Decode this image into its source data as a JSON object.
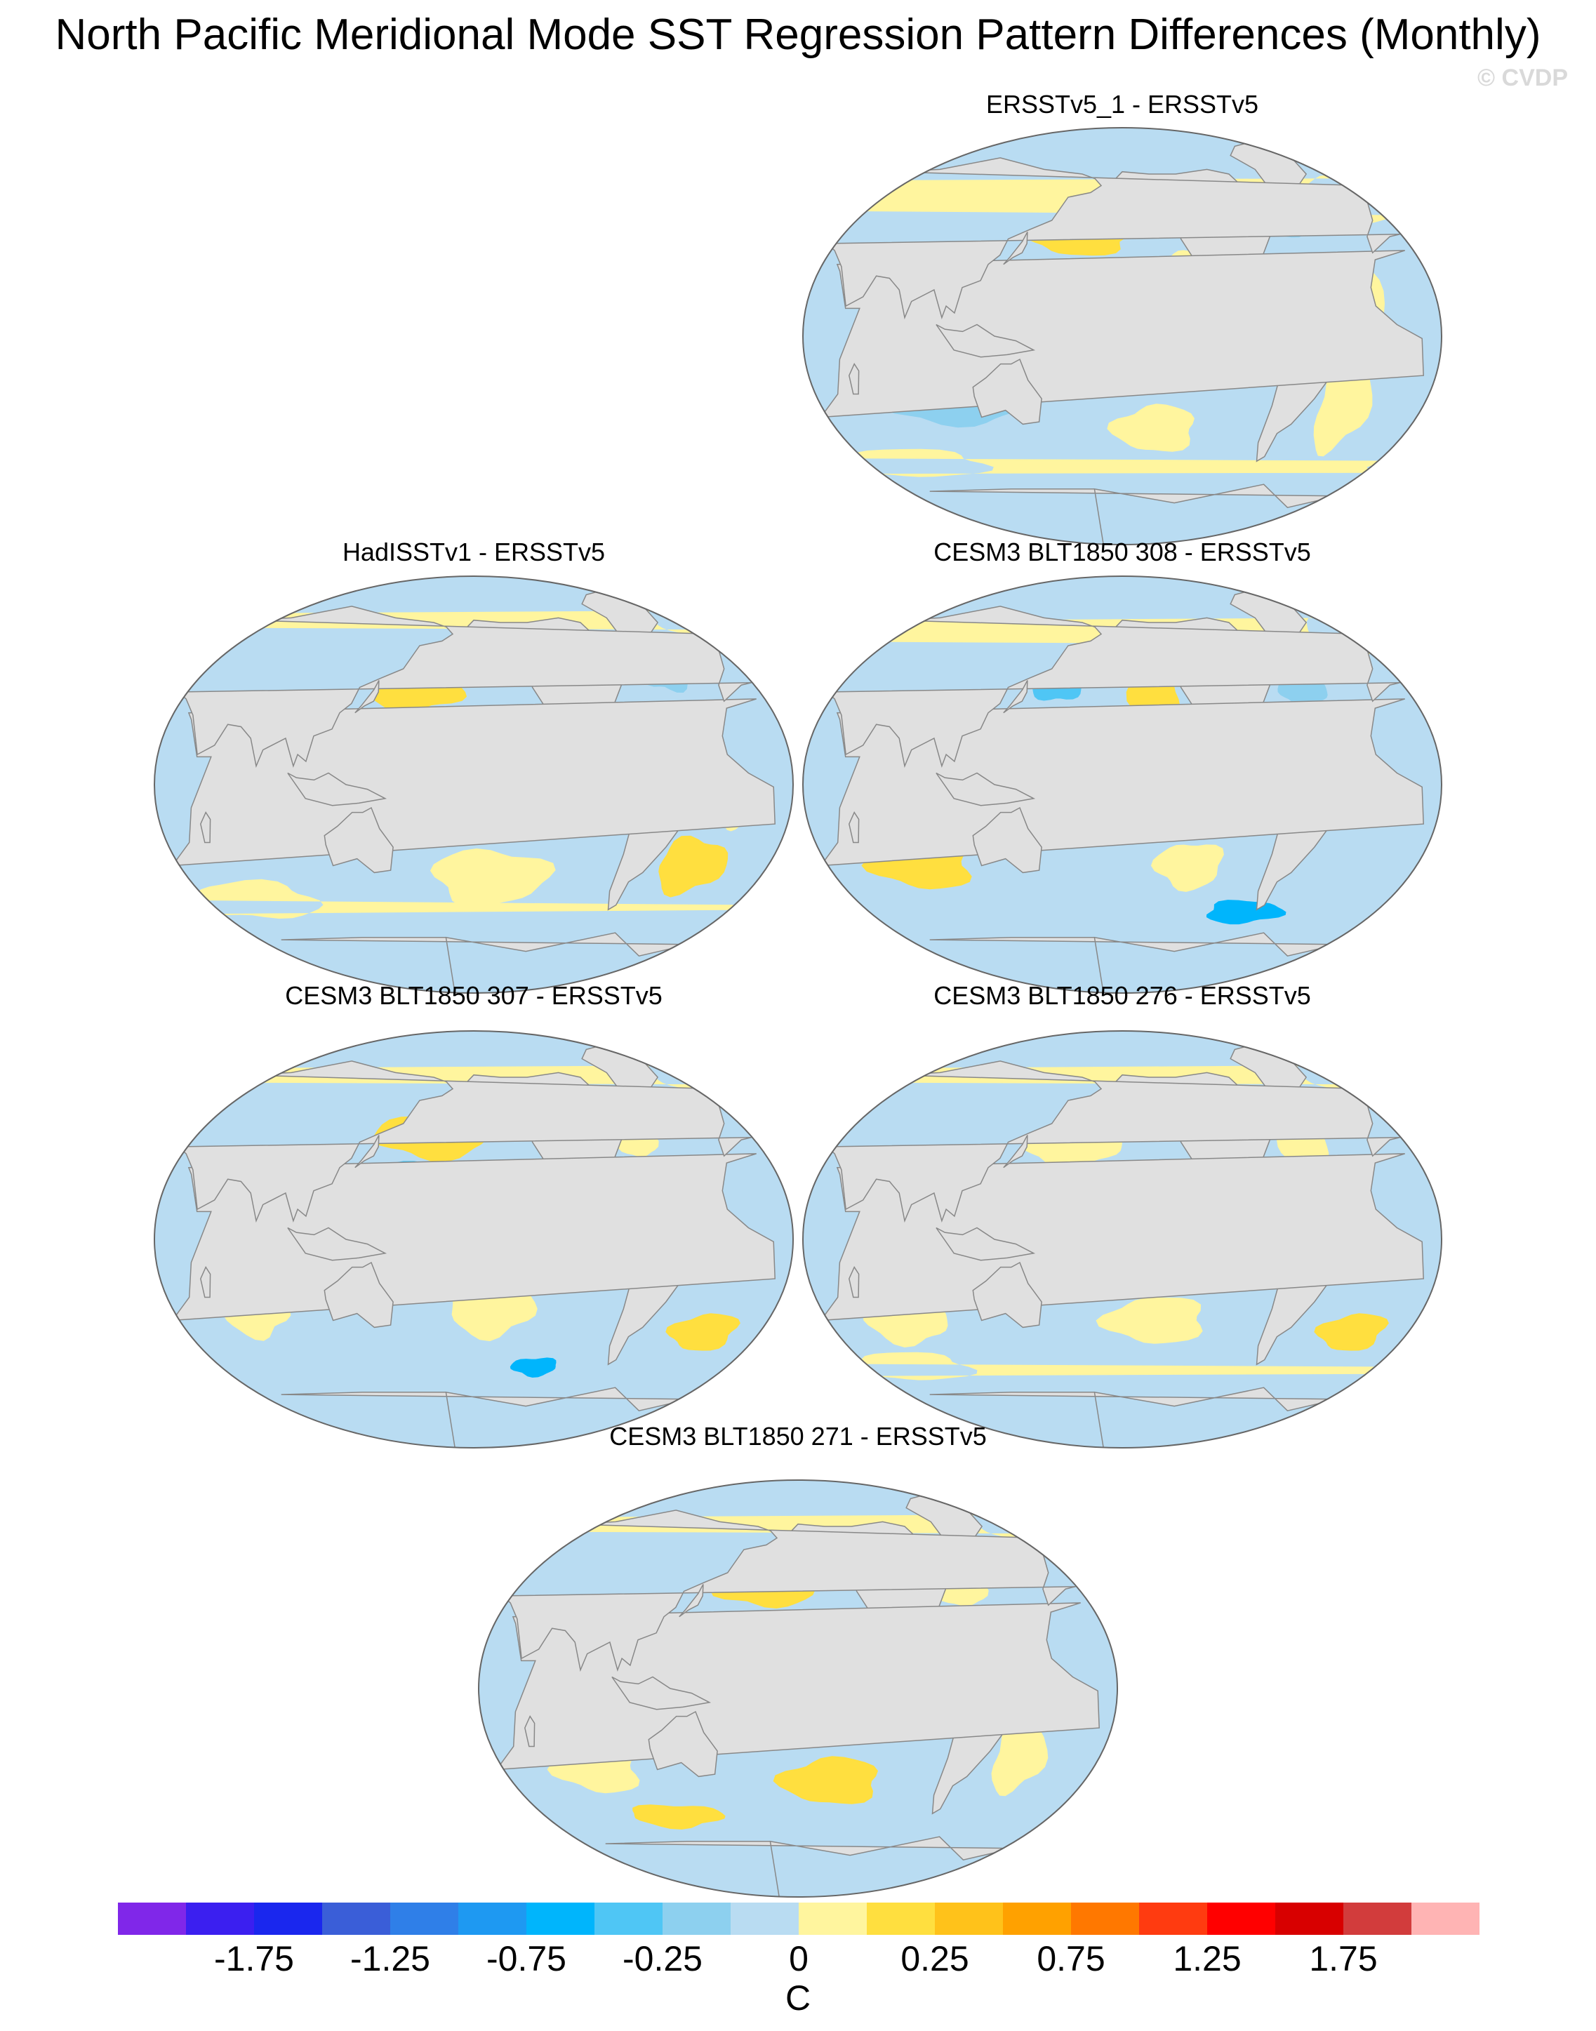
{
  "figure": {
    "title": "North Pacific Meridional Mode SST Regression Pattern Differences (Monthly)",
    "watermark": "© CVDP",
    "units": "C",
    "colors": {
      "ocean_base": "#b9dcf2",
      "land": "#e0e0e0",
      "coast": "#888888",
      "outline": "#666666"
    }
  },
  "panels": [
    {
      "title": "ERSSTv5_1 - ERSSTv5",
      "slot": "top-right",
      "blobs": [
        {
          "lon": 175,
          "lat": 42,
          "rx": 30,
          "ry": 7,
          "c": 11
        },
        {
          "lon": -150,
          "lat": 8,
          "rx": 35,
          "ry": 4,
          "c": 12
        },
        {
          "lon": -130,
          "lat": 5,
          "rx": 50,
          "ry": 7,
          "c": 10
        },
        {
          "lon": -120,
          "lat": 28,
          "rx": 15,
          "ry": 10,
          "c": 10
        },
        {
          "lon": 100,
          "lat": -30,
          "rx": 40,
          "ry": 8,
          "c": 8
        },
        {
          "lon": 80,
          "lat": -10,
          "rx": 12,
          "ry": 12,
          "c": 8
        },
        {
          "lon": -140,
          "lat": -40,
          "rx": 25,
          "ry": 10,
          "c": 10
        },
        {
          "lon": -30,
          "lat": -30,
          "rx": 15,
          "ry": 20,
          "c": 10
        },
        {
          "lon": 60,
          "lat": -55,
          "rx": 50,
          "ry": 6,
          "c": 10
        },
        {
          "lon": -20,
          "lat": 10,
          "rx": 10,
          "ry": 20,
          "c": 10
        },
        {
          "lon": 0,
          "lat": 60,
          "rx": 30,
          "ry": 10,
          "c": 10
        },
        {
          "lon": -60,
          "lat": 50,
          "rx": 20,
          "ry": 8,
          "c": 8
        },
        {
          "lon": -170,
          "lat": 60,
          "rx": 20,
          "ry": 6,
          "c": 10
        }
      ]
    },
    {
      "title": "HadISSTv1 - ERSSTv5",
      "slot": "mid1-left",
      "blobs": [
        {
          "lon": 165,
          "lat": 40,
          "rx": 28,
          "ry": 8,
          "c": 11
        },
        {
          "lon": 175,
          "lat": 22,
          "rx": 30,
          "ry": 5,
          "c": 8
        },
        {
          "lon": -140,
          "lat": 8,
          "rx": 45,
          "ry": 6,
          "c": 11
        },
        {
          "lon": -150,
          "lat": 8,
          "rx": 25,
          "ry": 3,
          "c": 12
        },
        {
          "lon": 100,
          "lat": -15,
          "rx": 15,
          "ry": 8,
          "c": 7
        },
        {
          "lon": -150,
          "lat": -40,
          "rx": 35,
          "ry": 12,
          "c": 10
        },
        {
          "lon": -30,
          "lat": -35,
          "rx": 20,
          "ry": 12,
          "c": 11
        },
        {
          "lon": -10,
          "lat": -10,
          "rx": 10,
          "ry": 10,
          "c": 10
        },
        {
          "lon": 60,
          "lat": -50,
          "rx": 40,
          "ry": 8,
          "c": 10
        },
        {
          "lon": 0,
          "lat": 70,
          "rx": 25,
          "ry": 6,
          "c": 10
        },
        {
          "lon": -40,
          "lat": 50,
          "rx": 15,
          "ry": 10,
          "c": 8
        }
      ]
    },
    {
      "title": "CESM3 BLT1850 308 - ERSSTv5",
      "slot": "mid1-right",
      "blobs": [
        {
          "lon": 160,
          "lat": 42,
          "rx": 15,
          "ry": 6,
          "c": 7
        },
        {
          "lon": -140,
          "lat": 40,
          "rx": 15,
          "ry": 15,
          "c": 11
        },
        {
          "lon": 180,
          "lat": 10,
          "rx": 70,
          "ry": 5,
          "c": 10
        },
        {
          "lon": -140,
          "lat": 5,
          "rx": 40,
          "ry": 4,
          "c": 11
        },
        {
          "lon": 90,
          "lat": -10,
          "rx": 10,
          "ry": 8,
          "c": 6
        },
        {
          "lon": 80,
          "lat": -35,
          "rx": 30,
          "ry": 10,
          "c": 11
        },
        {
          "lon": -140,
          "lat": -15,
          "rx": 15,
          "ry": 6,
          "c": 7
        },
        {
          "lon": -120,
          "lat": -35,
          "rx": 20,
          "ry": 10,
          "c": 10
        },
        {
          "lon": -20,
          "lat": -5,
          "rx": 10,
          "ry": 12,
          "c": 11
        },
        {
          "lon": -80,
          "lat": -55,
          "rx": 25,
          "ry": 5,
          "c": 6
        },
        {
          "lon": 0,
          "lat": 65,
          "rx": 25,
          "ry": 8,
          "c": 10
        },
        {
          "lon": -50,
          "lat": 40,
          "rx": 15,
          "ry": 6,
          "c": 8
        }
      ]
    },
    {
      "title": "CESM3 BLT1850 307 - ERSSTv5",
      "slot": "mid2-left",
      "blobs": [
        {
          "lon": 175,
          "lat": 45,
          "rx": 35,
          "ry": 10,
          "c": 11
        },
        {
          "lon": 170,
          "lat": 28,
          "rx": 25,
          "ry": 6,
          "c": 7
        },
        {
          "lon": -140,
          "lat": 8,
          "rx": 45,
          "ry": 5,
          "c": 12
        },
        {
          "lon": 100,
          "lat": 5,
          "rx": 25,
          "ry": 8,
          "c": 7
        },
        {
          "lon": 70,
          "lat": -30,
          "rx": 20,
          "ry": 12,
          "c": 10
        },
        {
          "lon": -150,
          "lat": -30,
          "rx": 25,
          "ry": 12,
          "c": 10
        },
        {
          "lon": -20,
          "lat": -40,
          "rx": 20,
          "ry": 8,
          "c": 11
        },
        {
          "lon": -120,
          "lat": -55,
          "rx": 15,
          "ry": 4,
          "c": 6
        },
        {
          "lon": -60,
          "lat": 45,
          "rx": 12,
          "ry": 10,
          "c": 10
        },
        {
          "lon": 0,
          "lat": 70,
          "rx": 25,
          "ry": 6,
          "c": 10
        },
        {
          "lon": -150,
          "lat": 55,
          "rx": 10,
          "ry": 5,
          "c": 12
        }
      ]
    },
    {
      "title": "CESM3 BLT1850 276 - ERSSTv5",
      "slot": "mid2-right",
      "blobs": [
        {
          "lon": 170,
          "lat": 40,
          "rx": 30,
          "ry": 8,
          "c": 10
        },
        {
          "lon": -150,
          "lat": 8,
          "rx": 50,
          "ry": 7,
          "c": 10
        },
        {
          "lon": 160,
          "lat": 12,
          "rx": 20,
          "ry": 4,
          "c": 11
        },
        {
          "lon": 90,
          "lat": -10,
          "rx": 15,
          "ry": 8,
          "c": 7
        },
        {
          "lon": 70,
          "lat": -35,
          "rx": 25,
          "ry": 10,
          "c": 10
        },
        {
          "lon": -140,
          "lat": -35,
          "rx": 30,
          "ry": 10,
          "c": 10
        },
        {
          "lon": -20,
          "lat": -40,
          "rx": 20,
          "ry": 8,
          "c": 11
        },
        {
          "lon": -110,
          "lat": -10,
          "rx": 12,
          "ry": 8,
          "c": 7
        },
        {
          "lon": -50,
          "lat": 40,
          "rx": 15,
          "ry": 12,
          "c": 10
        },
        {
          "lon": 0,
          "lat": 70,
          "rx": 25,
          "ry": 6,
          "c": 10
        },
        {
          "lon": 60,
          "lat": -55,
          "rx": 40,
          "ry": 6,
          "c": 10
        }
      ]
    },
    {
      "title": "CESM3 BLT1850 271 - ERSSTv5",
      "slot": "bottom-center",
      "blobs": [
        {
          "lon": 180,
          "lat": 45,
          "rx": 30,
          "ry": 10,
          "c": 11
        },
        {
          "lon": -150,
          "lat": 25,
          "rx": 20,
          "ry": 8,
          "c": 12
        },
        {
          "lon": 160,
          "lat": 22,
          "rx": 25,
          "ry": 6,
          "c": 7
        },
        {
          "lon": 180,
          "lat": 5,
          "rx": 50,
          "ry": 5,
          "c": 10
        },
        {
          "lon": 120,
          "lat": -10,
          "rx": 20,
          "ry": 8,
          "c": 7
        },
        {
          "lon": 80,
          "lat": -35,
          "rx": 25,
          "ry": 10,
          "c": 10
        },
        {
          "lon": -140,
          "lat": -40,
          "rx": 30,
          "ry": 10,
          "c": 11
        },
        {
          "lon": -30,
          "lat": -30,
          "rx": 15,
          "ry": 15,
          "c": 10
        },
        {
          "lon": -60,
          "lat": 45,
          "rx": 15,
          "ry": 10,
          "c": 10
        },
        {
          "lon": 0,
          "lat": 70,
          "rx": 25,
          "ry": 6,
          "c": 10
        },
        {
          "lon": 120,
          "lat": -55,
          "rx": 30,
          "ry": 5,
          "c": 11
        }
      ]
    }
  ],
  "colorbar": {
    "colors": [
      "#8027e9",
      "#3b1ff0",
      "#1a27ee",
      "#3a5ed8",
      "#2f7fe8",
      "#1e99f2",
      "#00b5fc",
      "#4fc6f5",
      "#8dd0ef",
      "#b9dcf2",
      "#fff59e",
      "#ffdf3f",
      "#ffc21a",
      "#ffa100",
      "#ff7800",
      "#ff3b10",
      "#ff0000",
      "#d80000",
      "#d23c3c",
      "#ffb4b4"
    ],
    "labels": [
      "-1.75",
      "-1.25",
      "-0.75",
      "-0.25",
      "0",
      "0.25",
      "0.75",
      "1.25",
      "1.75"
    ],
    "label_after_boxes": [
      2,
      4,
      6,
      8,
      10,
      12,
      14,
      16,
      18
    ]
  }
}
